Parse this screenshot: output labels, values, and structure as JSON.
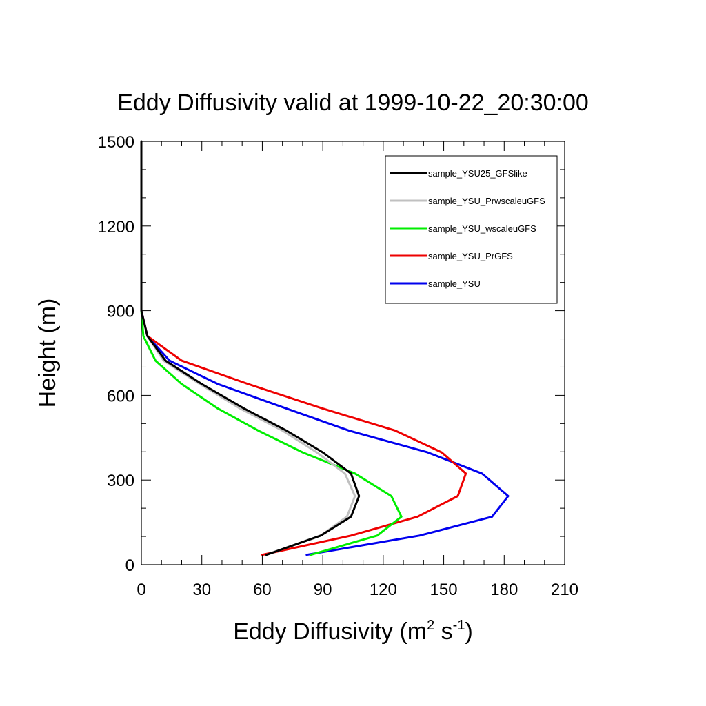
{
  "chart_data": {
    "type": "line",
    "title": "Eddy Diffusivity valid at 1999-10-22_20:30:00",
    "xlabel": "Eddy Diffusivity",
    "xlabel_unit_base1": "m",
    "xlabel_unit_exp1": "2",
    "xlabel_unit_base2": "s",
    "xlabel_unit_exp2": "-1",
    "ylabel": "Height (m)",
    "xlim": [
      0,
      210
    ],
    "ylim": [
      0,
      1500
    ],
    "xticks": [
      "0",
      "30",
      "60",
      "90",
      "120",
      "150",
      "180",
      "210"
    ],
    "yticks": [
      "0",
      "300",
      "600",
      "900",
      "1200",
      "1500"
    ],
    "legend_position": "top-right",
    "series": [
      {
        "name": "sample_YSU25_GFSlike",
        "color": "#000000",
        "points": [
          [
            62,
            35
          ],
          [
            89,
            103
          ],
          [
            104,
            170
          ],
          [
            108,
            243
          ],
          [
            104,
            323
          ],
          [
            90,
            398
          ],
          [
            72,
            475
          ],
          [
            51,
            553
          ],
          [
            30,
            640
          ],
          [
            12,
            723
          ],
          [
            3,
            810
          ],
          [
            0,
            900
          ],
          [
            0,
            1000
          ],
          [
            0,
            1100
          ],
          [
            0,
            1200
          ],
          [
            0,
            1300
          ],
          [
            0,
            1400
          ],
          [
            0,
            1500
          ]
        ]
      },
      {
        "name": "sample_YSU_PrwscaleuGFS",
        "color": "#c0c0c0",
        "points": [
          [
            62,
            35
          ],
          [
            89,
            103
          ],
          [
            102,
            170
          ],
          [
            106,
            243
          ],
          [
            101,
            323
          ],
          [
            87,
            398
          ],
          [
            70,
            475
          ],
          [
            49,
            553
          ],
          [
            29,
            640
          ],
          [
            11,
            723
          ],
          [
            3,
            810
          ],
          [
            0,
            900
          ]
        ]
      },
      {
        "name": "sample_YSU_wscaleuGFS",
        "color": "#00ee00",
        "points": [
          [
            84,
            35
          ],
          [
            117,
            103
          ],
          [
            129,
            170
          ],
          [
            124,
            243
          ],
          [
            106,
            323
          ],
          [
            80,
            398
          ],
          [
            58,
            475
          ],
          [
            38,
            553
          ],
          [
            20,
            640
          ],
          [
            7,
            723
          ],
          [
            1,
            810
          ],
          [
            0,
            900
          ]
        ]
      },
      {
        "name": "sample_YSU_PrGFS",
        "color": "#ee0000",
        "points": [
          [
            60,
            35
          ],
          [
            104,
            103
          ],
          [
            137,
            170
          ],
          [
            157,
            243
          ],
          [
            161,
            323
          ],
          [
            149,
            398
          ],
          [
            126,
            475
          ],
          [
            90,
            553
          ],
          [
            53,
            640
          ],
          [
            20,
            723
          ],
          [
            3,
            810
          ],
          [
            0,
            900
          ]
        ]
      },
      {
        "name": "sample_YSU",
        "color": "#0000ee",
        "points": [
          [
            82,
            35
          ],
          [
            138,
            103
          ],
          [
            174,
            170
          ],
          [
            182,
            243
          ],
          [
            169,
            323
          ],
          [
            142,
            398
          ],
          [
            103,
            475
          ],
          [
            72,
            553
          ],
          [
            38,
            640
          ],
          [
            14,
            723
          ],
          [
            3,
            810
          ],
          [
            0,
            900
          ]
        ]
      }
    ]
  }
}
